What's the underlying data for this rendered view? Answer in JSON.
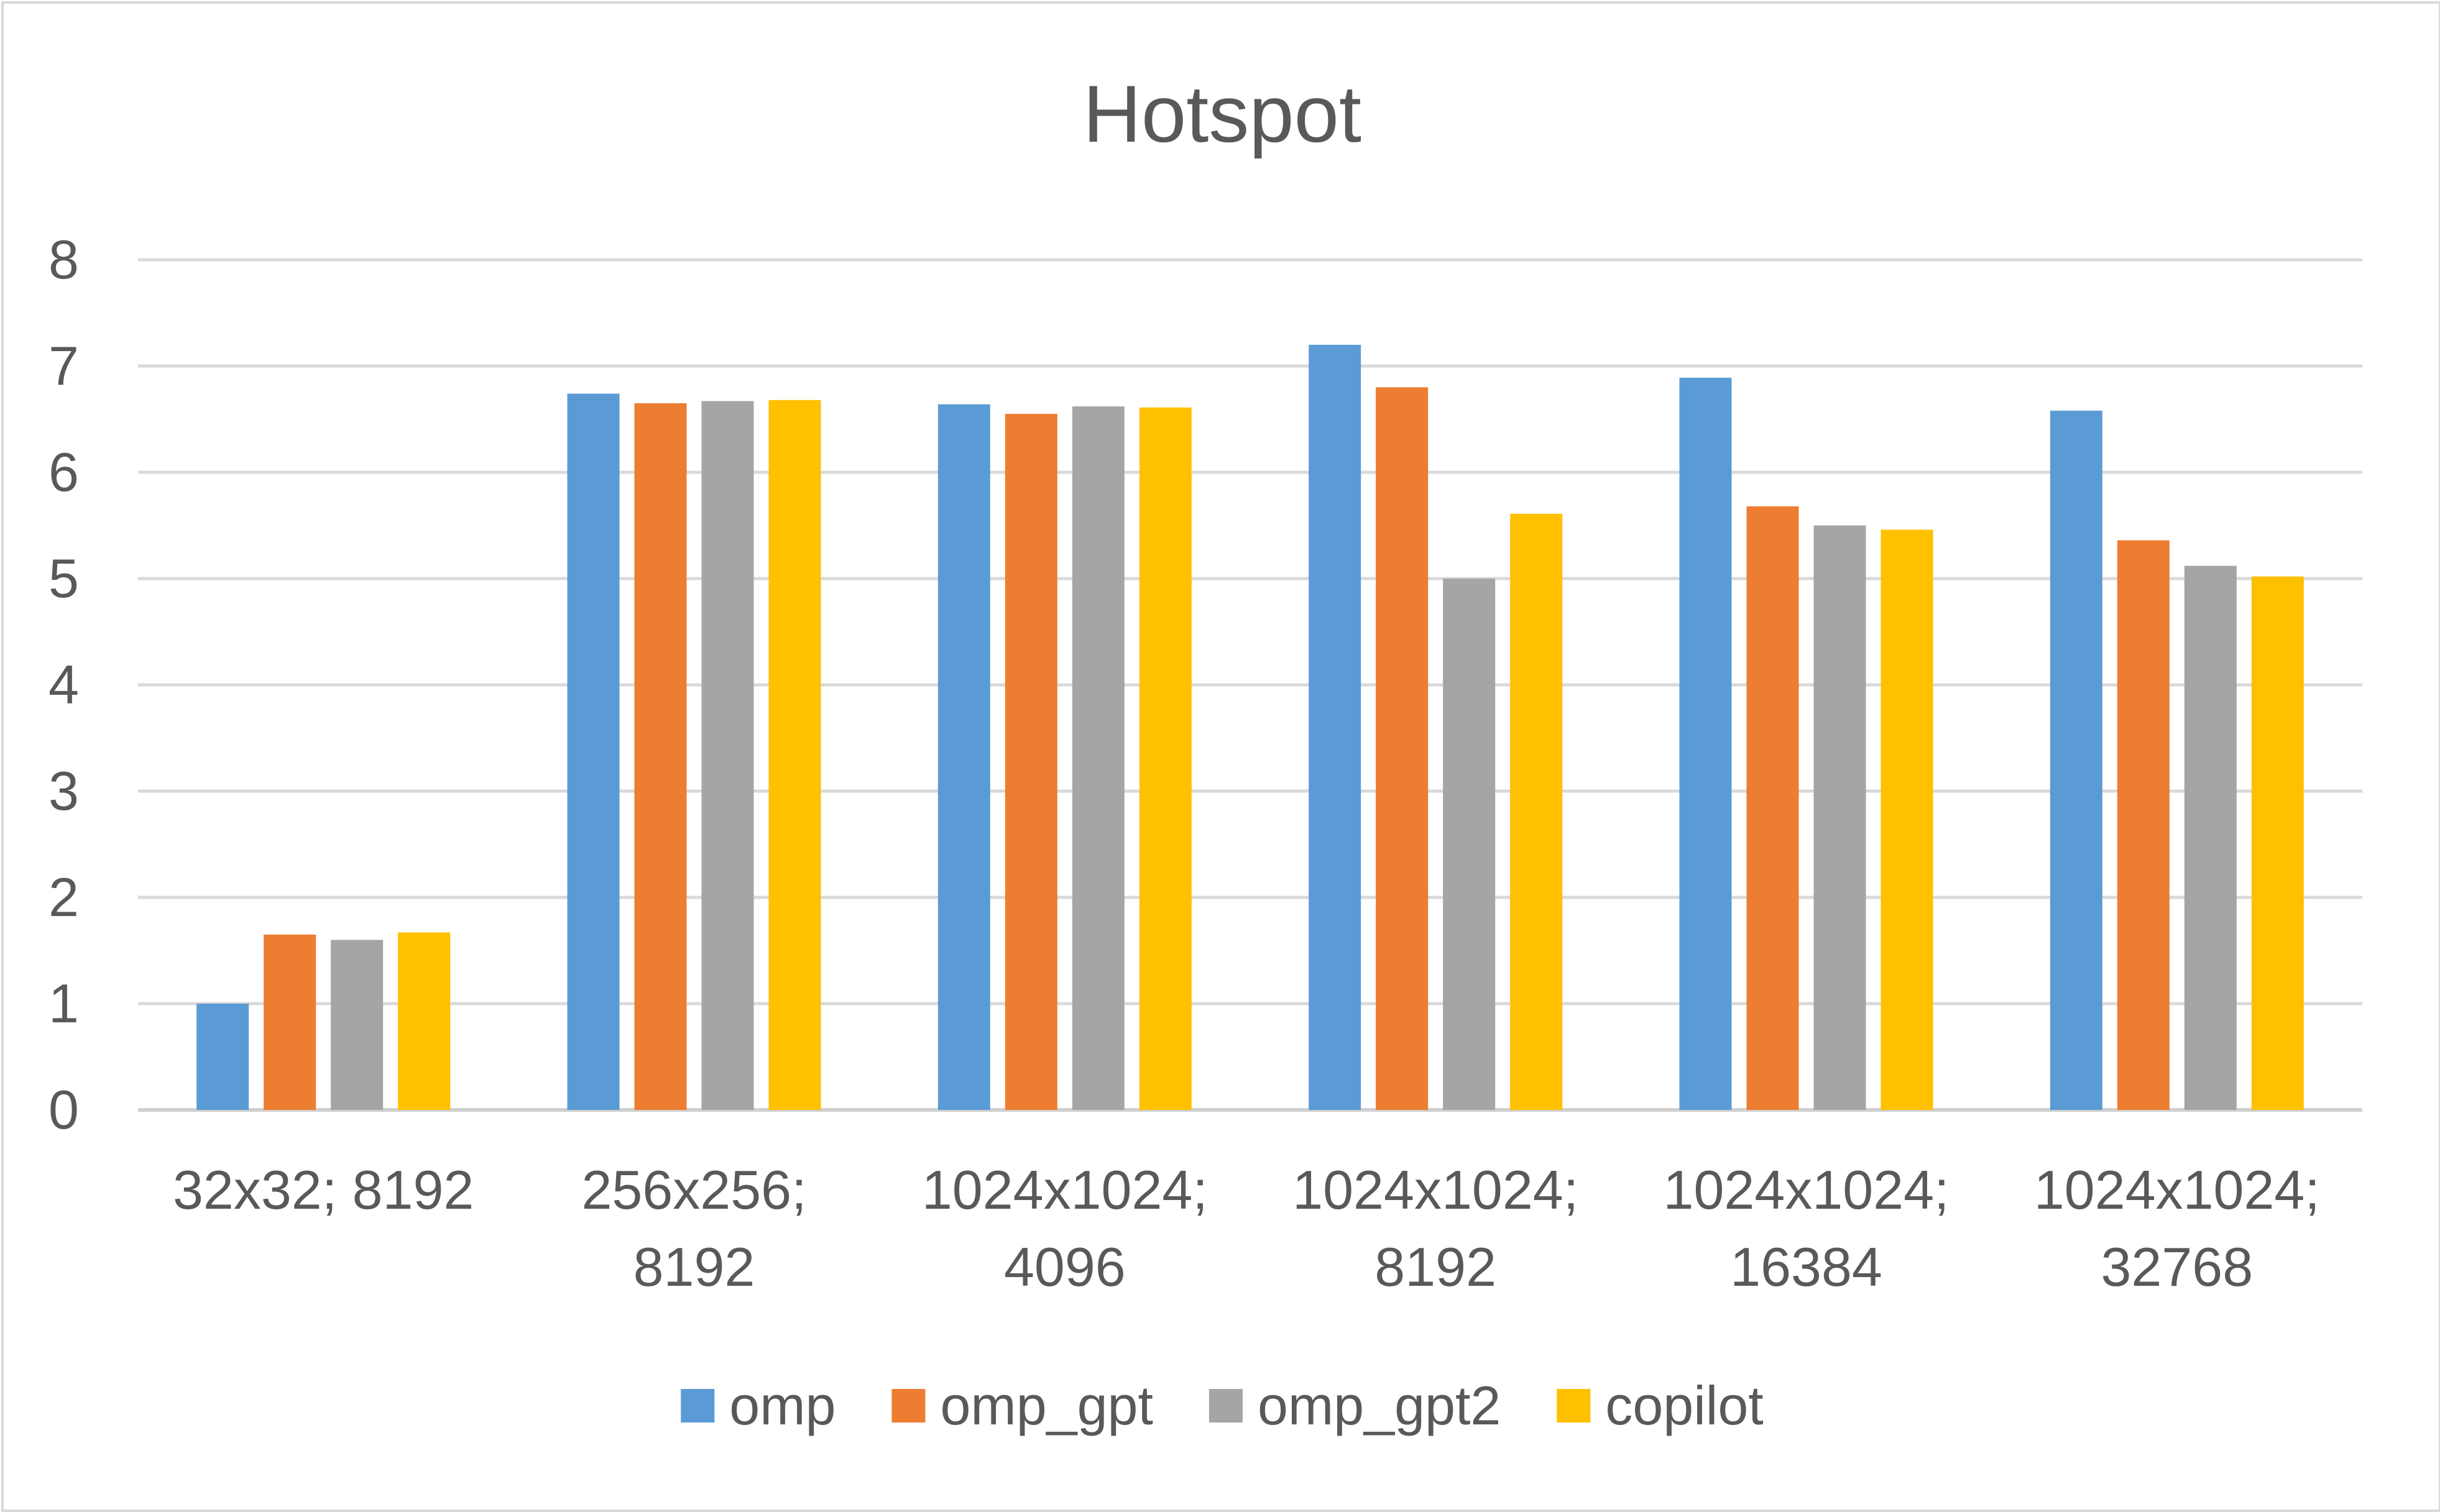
{
  "chart_data": {
    "type": "bar",
    "title": "Hotspot",
    "xlabel": "",
    "ylabel": "",
    "ylim": [
      0,
      8
    ],
    "yticks": [
      "0",
      "1",
      "2",
      "3",
      "4",
      "5",
      "6",
      "7",
      "8"
    ],
    "grid": true,
    "legend_position": "bottom",
    "categories": [
      [
        "32x32; 8192"
      ],
      [
        "256x256;",
        "8192"
      ],
      [
        "1024x1024;",
        "4096"
      ],
      [
        "1024x1024;",
        "8192"
      ],
      [
        "1024x1024;",
        "16384"
      ],
      [
        "1024x1024;",
        "32768"
      ]
    ],
    "series": [
      {
        "name": "omp",
        "color": "#5b9bd5",
        "values": [
          1.0,
          6.74,
          6.64,
          7.2,
          6.89,
          6.58
        ]
      },
      {
        "name": "omp_gpt",
        "color": "#ed7d31",
        "values": [
          1.65,
          6.65,
          6.55,
          6.8,
          5.68,
          5.36
        ]
      },
      {
        "name": "omp_gpt2",
        "color": "#a5a5a5",
        "values": [
          1.6,
          6.67,
          6.62,
          5.0,
          5.5,
          5.12
        ]
      },
      {
        "name": "copilot",
        "color": "#ffc000",
        "values": [
          1.67,
          6.68,
          6.61,
          5.61,
          5.46,
          5.02
        ]
      }
    ]
  }
}
